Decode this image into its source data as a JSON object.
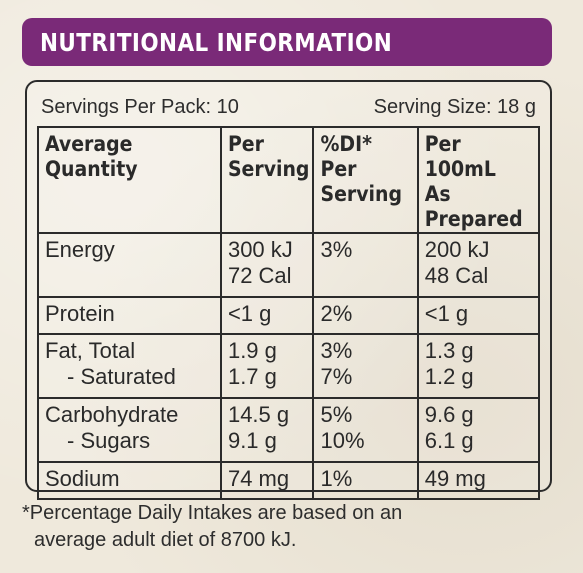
{
  "title": "NUTRITIONAL INFORMATION",
  "servings_per_pack": "Servings Per Pack: 10",
  "serving_size": "Serving Size: 18 g",
  "headers": {
    "col1": [
      "Average",
      "Quantity"
    ],
    "col2": [
      "Per",
      "Serving"
    ],
    "col3": [
      "%DI* Per",
      "Serving"
    ],
    "col4": [
      "Per 100mL",
      "As Prepared"
    ]
  },
  "rows": {
    "energy": {
      "label": "Energy",
      "per_serving": [
        "300 kJ",
        "72 Cal"
      ],
      "di": "3%",
      "per_100ml": [
        "200 kJ",
        "48 Cal"
      ]
    },
    "protein": {
      "label": "Protein",
      "per_serving": "<1 g",
      "di": "2%",
      "per_100ml": "<1 g"
    },
    "fat": {
      "label": "Fat, Total",
      "sub_label": "- Saturated",
      "per_serving": [
        "1.9 g",
        "1.7 g"
      ],
      "di": [
        "3%",
        "7%"
      ],
      "per_100ml": [
        "1.3 g",
        "1.2 g"
      ]
    },
    "carb": {
      "label": "Carbohydrate",
      "sub_label": "- Sugars",
      "per_serving": [
        "14.5 g",
        "9.1 g"
      ],
      "di": [
        "5%",
        "10%"
      ],
      "per_100ml": [
        "9.6 g",
        "6.1 g"
      ]
    },
    "sodium": {
      "label": "Sodium",
      "per_serving": "74 mg",
      "di": "1%",
      "per_100ml": "49 mg"
    }
  },
  "footnote": [
    "*Percentage Daily Intakes are based on an",
    "average adult diet of 8700 kJ."
  ],
  "colors": {
    "banner": "#7a2a78",
    "border": "#2b2b2b",
    "background": "#efe9dc"
  }
}
